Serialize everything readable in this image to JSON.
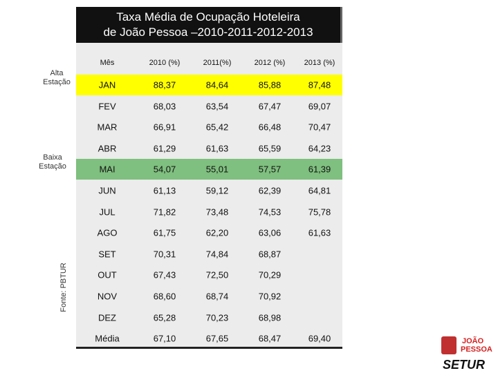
{
  "title": {
    "lines": [
      "Taxa Média de Ocupação Hoteleira",
      "de João Pessoa –2010-2011-2012-2013"
    ]
  },
  "side_labels": [
    {
      "lines": [
        "Alta",
        "Estação"
      ]
    },
    {
      "lines": [
        "Baixa",
        "Estação"
      ]
    }
  ],
  "source": "Fonte: PBTUR",
  "table": {
    "header": [
      "Mês",
      "2010 (%)",
      "2011(%)",
      "2012 (%)",
      "2013 (%)"
    ],
    "rows": [
      [
        "JAN",
        "88,37",
        "84,64",
        "85,88",
        "87,48"
      ],
      [
        "FEV",
        "68,03",
        "63,54",
        "67,47",
        "69,07"
      ],
      [
        "MAR",
        "66,91",
        "65,42",
        "66,48",
        "70,47"
      ],
      [
        "ABR",
        "61,29",
        "61,63",
        "65,59",
        "64,23"
      ],
      [
        "MAI",
        "54,07",
        "55,01",
        "57,57",
        "61,39"
      ],
      [
        "JUN",
        "61,13",
        "59,12",
        "62,39",
        "64,81"
      ],
      [
        "JUL",
        "71,82",
        "73,48",
        "74,53",
        "75,78"
      ],
      [
        "AGO",
        "61,75",
        "62,20",
        "63,06",
        "61,63"
      ],
      [
        "SET",
        "70,31",
        "74,84",
        "68,87"
      ],
      [
        "OUT",
        "67,43",
        "72,50",
        "70,29"
      ],
      [
        "NOV",
        "68,60",
        "68,74",
        "70,92"
      ],
      [
        "DEZ",
        "65,28",
        "70,23",
        "68,98"
      ],
      [
        "Média",
        "67,10",
        "67,65",
        "68,47",
        "69,40"
      ]
    ]
  },
  "logo": {
    "lines": [
      "JOÃO",
      "PESSOA"
    ],
    "name": "SETUR"
  }
}
